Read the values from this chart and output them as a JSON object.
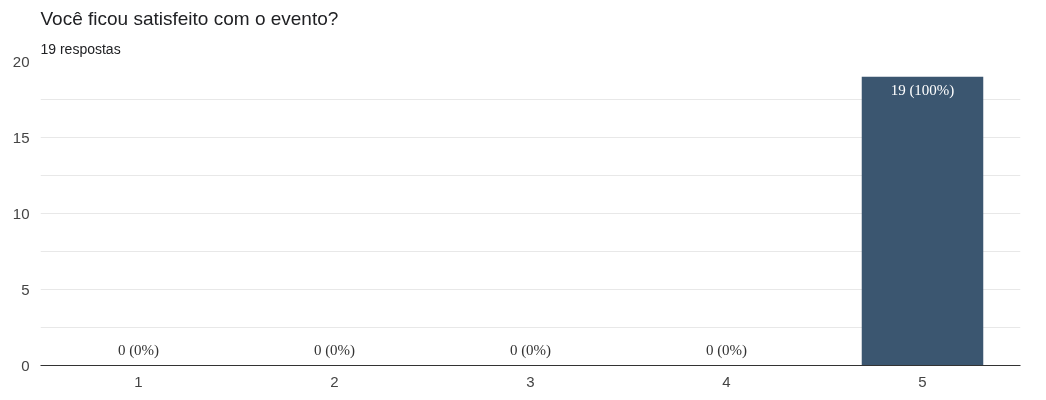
{
  "chart_data": {
    "type": "bar",
    "title": "Você ficou satisfeito com o evento?",
    "subtitle": "19 respostas",
    "categories": [
      "1",
      "2",
      "3",
      "4",
      "5"
    ],
    "values": [
      0,
      0,
      0,
      0,
      19
    ],
    "value_labels": [
      "0 (0%)",
      "0 (0%)",
      "0 (0%)",
      "0 (0%)",
      "19 (100%)"
    ],
    "color": "#3b5670",
    "ylim": [
      0,
      20
    ],
    "yticks": [
      0,
      {
        "value": 2.5,
        "label": null
      },
      5,
      {
        "value": 7.5,
        "label": null
      },
      10,
      {
        "value": 12.5,
        "label": null
      },
      15,
      {
        "value": 17.5,
        "label": null
      },
      20
    ],
    "grid": "y"
  }
}
